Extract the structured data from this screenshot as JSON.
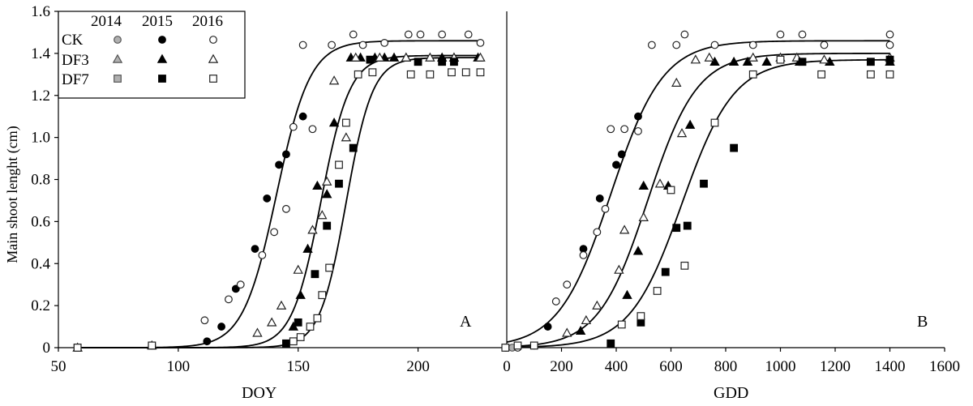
{
  "chart_data": [
    {
      "panel": "A",
      "type": "scatter",
      "panel_label": "A",
      "xlabel": "DOY",
      "ylabel": "Main shoot lenght (cm)",
      "xlim": [
        50,
        237
      ],
      "ylim": [
        0,
        1.6
      ],
      "xticks": [
        50,
        100,
        150,
        200
      ],
      "yticks": [
        0,
        0.2,
        0.4,
        0.6,
        0.8,
        1.0,
        1.2,
        1.4,
        1.6
      ],
      "ytick_labels": [
        "0",
        "0.2",
        "0.4",
        "0.6",
        "0.8",
        "1.0",
        "1.2",
        "1.4",
        "1.6"
      ],
      "series": [
        {
          "treatment": "CK",
          "year": "2014",
          "marker": "circle",
          "fill": "#b0b0b0",
          "x": [
            58,
            89
          ],
          "y": [
            0.0,
            0.01
          ]
        },
        {
          "treatment": "CK",
          "year": "2015",
          "marker": "circle",
          "fill": "#000000",
          "x": [
            112,
            118,
            124,
            132,
            137,
            142,
            145,
            152
          ],
          "y": [
            0.03,
            0.1,
            0.28,
            0.47,
            0.71,
            0.87,
            0.92,
            1.1
          ]
        },
        {
          "treatment": "CK",
          "year": "2016",
          "marker": "circle",
          "fill": "#ffffff",
          "x": [
            58,
            89,
            111,
            121,
            126,
            135,
            140,
            145,
            148,
            152,
            156,
            164,
            173,
            177,
            186,
            196,
            201,
            210,
            221,
            226
          ],
          "y": [
            0.0,
            0.01,
            0.13,
            0.23,
            0.3,
            0.44,
            0.55,
            0.66,
            1.05,
            1.44,
            1.04,
            1.44,
            1.49,
            1.44,
            1.45,
            1.49,
            1.49,
            1.49,
            1.49,
            1.45
          ]
        },
        {
          "treatment": "DF3",
          "year": "2014",
          "marker": "triangle",
          "fill": "#b0b0b0",
          "x": [
            58,
            89
          ],
          "y": [
            0.0,
            0.01
          ]
        },
        {
          "treatment": "DF3",
          "year": "2015",
          "marker": "triangle",
          "fill": "#000000",
          "x": [
            148,
            151,
            154,
            158,
            162,
            165,
            172,
            176,
            182,
            186,
            190,
            195,
            210,
            215,
            225
          ],
          "y": [
            0.1,
            0.25,
            0.47,
            0.77,
            0.73,
            1.07,
            1.38,
            1.38,
            1.38,
            1.38,
            1.38,
            1.38,
            1.38,
            1.38,
            1.38
          ]
        },
        {
          "treatment": "DF3",
          "year": "2016",
          "marker": "triangle",
          "fill": "#ffffff",
          "x": [
            58,
            89,
            133,
            139,
            143,
            150,
            156,
            160,
            162,
            165,
            170,
            174,
            184,
            195,
            205,
            215,
            226
          ],
          "y": [
            0.0,
            0.01,
            0.07,
            0.12,
            0.2,
            0.37,
            0.56,
            0.63,
            0.79,
            1.27,
            1.0,
            1.38,
            1.38,
            1.38,
            1.38,
            1.38,
            1.38
          ]
        },
        {
          "treatment": "DF7",
          "year": "2014",
          "marker": "square",
          "fill": "#b0b0b0",
          "x": [
            58,
            89
          ],
          "y": [
            0.0,
            0.01
          ]
        },
        {
          "treatment": "DF7",
          "year": "2015",
          "marker": "square",
          "fill": "#000000",
          "x": [
            145,
            150,
            157,
            162,
            167,
            173,
            180,
            200,
            210,
            215
          ],
          "y": [
            0.02,
            0.12,
            0.35,
            0.58,
            0.78,
            0.95,
            1.37,
            1.36,
            1.36,
            1.36
          ]
        },
        {
          "treatment": "DF7",
          "year": "2016",
          "marker": "square",
          "fill": "#ffffff",
          "x": [
            58,
            89,
            148,
            151,
            155,
            158,
            160,
            163,
            167,
            170,
            175,
            181,
            197,
            205,
            214,
            220,
            226
          ],
          "y": [
            0.0,
            0.01,
            0.03,
            0.05,
            0.1,
            0.14,
            0.25,
            0.38,
            0.87,
            1.07,
            1.3,
            1.31,
            1.3,
            1.3,
            1.31,
            1.31,
            1.31
          ]
        }
      ],
      "fitted_curves": [
        {
          "treatment": "CK",
          "style": "solid",
          "asymptote": 1.46,
          "midpoint": 141,
          "slope": 7,
          "x_range": [
            58,
            226
          ]
        },
        {
          "treatment": "DF3",
          "style": "solid",
          "asymptote": 1.39,
          "midpoint": 159.5,
          "slope": 6,
          "x_range": [
            58,
            226
          ]
        },
        {
          "treatment": "DF7",
          "style": "solid",
          "asymptote": 1.38,
          "midpoint": 170,
          "slope": 5.5,
          "x_range": [
            58,
            226
          ]
        }
      ],
      "legend": {
        "position": "top-left",
        "years": [
          "2014",
          "2015",
          "2016"
        ],
        "treatments": [
          "CK",
          "DF3",
          "DF7"
        ]
      }
    },
    {
      "panel": "B",
      "type": "scatter",
      "panel_label": "B",
      "xlabel": "GDD",
      "xlim": [
        0,
        1600
      ],
      "ylim": [
        0,
        1.6
      ],
      "xticks": [
        0,
        200,
        400,
        600,
        800,
        1000,
        1200,
        1400,
        1600
      ],
      "series": [
        {
          "treatment": "CK",
          "year": "2014",
          "marker": "circle",
          "fill": "#b0b0b0",
          "x": [
            0,
            20
          ],
          "y": [
            0.0,
            0.0
          ]
        },
        {
          "treatment": "CK",
          "year": "2015",
          "marker": "circle",
          "fill": "#000000",
          "x": [
            -5,
            150,
            280,
            340,
            400,
            420,
            480
          ],
          "y": [
            0.0,
            0.1,
            0.47,
            0.71,
            0.87,
            0.92,
            1.1
          ]
        },
        {
          "treatment": "CK",
          "year": "2016",
          "marker": "circle",
          "fill": "#ffffff",
          "x": [
            40,
            100,
            180,
            220,
            280,
            330,
            360,
            380,
            430,
            480,
            530,
            620,
            650,
            760,
            900,
            1000,
            1080,
            1160,
            1400,
            1400
          ],
          "y": [
            0.0,
            0.01,
            0.22,
            0.3,
            0.44,
            0.55,
            0.66,
            1.04,
            1.04,
            1.03,
            1.44,
            1.44,
            1.49,
            1.44,
            1.44,
            1.49,
            1.49,
            1.44,
            1.49,
            1.44
          ]
        },
        {
          "treatment": "DF3",
          "year": "2015",
          "marker": "triangle",
          "fill": "#000000",
          "x": [
            270,
            440,
            480,
            500,
            590,
            670,
            760,
            830,
            880,
            950,
            1070,
            1180,
            1400
          ],
          "y": [
            0.08,
            0.25,
            0.46,
            0.77,
            0.77,
            1.06,
            1.36,
            1.36,
            1.36,
            1.36,
            1.36,
            1.36,
            1.36
          ]
        },
        {
          "treatment": "DF3",
          "year": "2016",
          "marker": "triangle",
          "fill": "#ffffff",
          "x": [
            220,
            290,
            330,
            410,
            430,
            500,
            560,
            620,
            640,
            690,
            740,
            900,
            1000,
            1060,
            1160,
            1400
          ],
          "y": [
            0.07,
            0.13,
            0.2,
            0.37,
            0.56,
            0.62,
            0.78,
            1.26,
            1.02,
            1.37,
            1.38,
            1.38,
            1.38,
            1.38,
            1.37,
            1.38
          ]
        },
        {
          "treatment": "DF7",
          "year": "2015",
          "marker": "square",
          "fill": "#000000",
          "x": [
            380,
            490,
            580,
            620,
            660,
            720,
            830,
            1080,
            1330,
            1400
          ],
          "y": [
            0.02,
            0.12,
            0.36,
            0.57,
            0.58,
            0.78,
            0.95,
            1.36,
            1.36,
            1.37
          ]
        },
        {
          "treatment": "DF7",
          "year": "2016",
          "marker": "square",
          "fill": "#ffffff",
          "x": [
            -5,
            40,
            100,
            420,
            490,
            550,
            600,
            650,
            760,
            900,
            1000,
            1150,
            1330,
            1400
          ],
          "y": [
            0.0,
            0.01,
            0.01,
            0.11,
            0.15,
            0.27,
            0.75,
            0.39,
            1.07,
            1.3,
            1.37,
            1.3,
            1.3,
            1.3
          ]
        }
      ],
      "fitted_curves": [
        {
          "treatment": "CK",
          "style": "solid",
          "asymptote": 1.46,
          "midpoint": 380,
          "slope": 95,
          "x_range": [
            0,
            1400
          ]
        },
        {
          "treatment": "DF3",
          "style": "solid",
          "asymptote": 1.4,
          "midpoint": 515,
          "slope": 90,
          "x_range": [
            0,
            1400
          ]
        },
        {
          "treatment": "DF7",
          "style": "solid",
          "asymptote": 1.37,
          "midpoint": 640,
          "slope": 95,
          "x_range": [
            0,
            1400
          ]
        }
      ]
    }
  ]
}
